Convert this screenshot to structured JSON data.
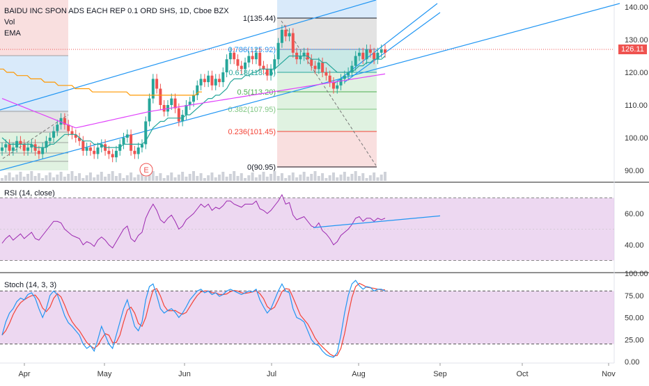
{
  "colors": {
    "up": "#26a69a",
    "down": "#ef5350",
    "rsiLine": "#9c27b0",
    "rsiFill": "#e1bee7",
    "stochK": "#2196f3",
    "stochD": "#f44336",
    "stochFill": "#e1bee7",
    "trendline": "#2196f3",
    "emaFast": "#26a69a",
    "emaOrange": "#ff9800",
    "emaPurple": "#e040fb",
    "priceLine": "#ef5350"
  },
  "main": {
    "title": "BAIDU INC SPON ADS EACH REP 0.1 ORD SHS, 1D, Cboe BZX",
    "vol_label": "Vol",
    "ema_label": "EMA",
    "earnings_badge": "E",
    "current_price": "126.11",
    "price_ticks": [
      "140.00",
      "130.00",
      "120.00",
      "110.00",
      "100.00",
      "90.00"
    ]
  },
  "fib": {
    "levels": [
      {
        "ratio": "1",
        "label": "1(135.44)",
        "color": "#131722"
      },
      {
        "ratio": "0.786",
        "label": "0.786(125.92)",
        "color": "#2196f3"
      },
      {
        "ratio": "0.618",
        "label": "0.618(118.45)",
        "color": "#26a69a"
      },
      {
        "ratio": "0.5",
        "label": "0.5(113.20)",
        "color": "#4caf50"
      },
      {
        "ratio": "0.382",
        "label": "0.382(107.95)",
        "color": "#81c784"
      },
      {
        "ratio": "0.236",
        "label": "0.236(101.45)",
        "color": "#f44336"
      },
      {
        "ratio": "0",
        "label": "0(90.95)",
        "color": "#131722"
      }
    ]
  },
  "rsi": {
    "label": "RSI (14, close)",
    "ticks": [
      "60.00",
      "40.00"
    ]
  },
  "stoch": {
    "label": "Stoch (14, 3, 3)",
    "ticks": [
      "100.00",
      "75.00",
      "50.00",
      "25.00",
      "0.00"
    ]
  },
  "x_axis": {
    "months": [
      "Apr",
      "May",
      "Jun",
      "Jul",
      "Aug",
      "Sep",
      "Oct",
      "Nov"
    ]
  },
  "chart_data": {
    "type": "candlestick",
    "series_close": [
      97,
      98,
      96,
      97,
      99,
      98,
      96,
      97,
      98,
      96,
      95,
      97,
      99,
      100,
      102,
      104,
      106,
      104,
      102,
      101,
      100,
      99,
      96,
      97,
      96,
      95,
      97,
      98,
      96,
      95,
      94,
      96,
      98,
      100,
      101,
      96,
      95,
      97,
      98,
      105,
      112,
      118,
      115,
      110,
      108,
      110,
      112,
      109,
      105,
      107,
      110,
      111,
      113,
      116,
      118,
      117,
      119,
      116,
      118,
      117,
      120,
      124,
      126,
      124,
      122,
      121,
      123,
      125,
      124,
      126,
      122,
      121,
      119,
      121,
      124,
      129,
      133,
      131,
      132,
      126,
      124,
      125,
      126,
      124,
      122,
      121,
      123,
      120,
      119,
      117,
      115,
      116,
      118,
      119,
      120,
      122,
      125,
      126,
      124,
      127,
      126,
      124,
      126,
      127,
      126
    ],
    "ema_fast": [
      100,
      99,
      98,
      98,
      98,
      98,
      98,
      98,
      98,
      97,
      97,
      97,
      97,
      98,
      98,
      99,
      100,
      101,
      101,
      101,
      101,
      100,
      99,
      99,
      99,
      98,
      98,
      98,
      97,
      97,
      97,
      97,
      97,
      98,
      98,
      98,
      98,
      98,
      98,
      99,
      101,
      103,
      104,
      105,
      105,
      106,
      106,
      106,
      106,
      106,
      107,
      107,
      108,
      109,
      110,
      111,
      112,
      112,
      113,
      113,
      114,
      115,
      117,
      118,
      118,
      118,
      119,
      119,
      120,
      120,
      121,
      121,
      121,
      121,
      121,
      122,
      123,
      124,
      125,
      125,
      125,
      125,
      125,
      125,
      124,
      124,
      124,
      123,
      123,
      122,
      121,
      120,
      120,
      120,
      120,
      120,
      121,
      122,
      122,
      123,
      123,
      124,
      124,
      124,
      125
    ],
    "ema_slow": [
      121,
      121,
      120,
      120,
      120,
      119,
      119,
      119,
      119,
      118,
      118,
      118,
      118,
      117,
      117,
      117,
      117,
      116,
      116,
      116,
      116,
      116,
      115,
      115,
      115,
      115,
      115,
      114,
      114,
      114,
      114,
      114,
      114,
      114,
      114,
      114,
      114,
      114,
      113,
      113,
      113,
      113,
      113,
      113,
      113,
      113,
      113,
      113,
      113,
      113,
      113,
      113,
      113,
      113,
      113,
      113,
      113,
      113,
      114,
      114
    ],
    "rsi": [
      41,
      44,
      46,
      43,
      45,
      47,
      44,
      46,
      48,
      44,
      43,
      46,
      49,
      52,
      55,
      55,
      54,
      50,
      48,
      46,
      45,
      44,
      40,
      42,
      41,
      39,
      43,
      45,
      43,
      40,
      38,
      42,
      46,
      50,
      52,
      44,
      42,
      46,
      48,
      57,
      62,
      66,
      62,
      56,
      54,
      57,
      59,
      55,
      50,
      52,
      56,
      58,
      60,
      63,
      66,
      64,
      66,
      62,
      64,
      63,
      65,
      68,
      68,
      66,
      65,
      64,
      66,
      66,
      66,
      68,
      63,
      62,
      60,
      62,
      65,
      68,
      72,
      66,
      67,
      59,
      56,
      57,
      58,
      55,
      52,
      51,
      54,
      49,
      47,
      44,
      40,
      42,
      46,
      48,
      50,
      53,
      57,
      58,
      55,
      57,
      57,
      55,
      57,
      56,
      57
    ],
    "stoch_k": [
      30,
      45,
      55,
      60,
      68,
      72,
      70,
      76,
      78,
      72,
      60,
      50,
      60,
      75,
      80,
      76,
      64,
      52,
      44,
      40,
      35,
      30,
      20,
      15,
      18,
      12,
      25,
      40,
      30,
      20,
      15,
      30,
      45,
      60,
      70,
      55,
      40,
      35,
      45,
      70,
      85,
      88,
      75,
      60,
      55,
      58,
      60,
      56,
      50,
      55,
      62,
      70,
      75,
      80,
      82,
      78,
      80,
      76,
      78,
      74,
      76,
      80,
      82,
      80,
      78,
      76,
      78,
      80,
      79,
      82,
      70,
      62,
      55,
      60,
      70,
      80,
      88,
      80,
      78,
      60,
      50,
      48,
      45,
      35,
      25,
      20,
      18,
      12,
      8,
      6,
      5,
      10,
      30,
      55,
      75,
      88,
      92,
      86,
      82,
      85,
      84,
      80,
      82,
      82,
      80
    ]
  }
}
